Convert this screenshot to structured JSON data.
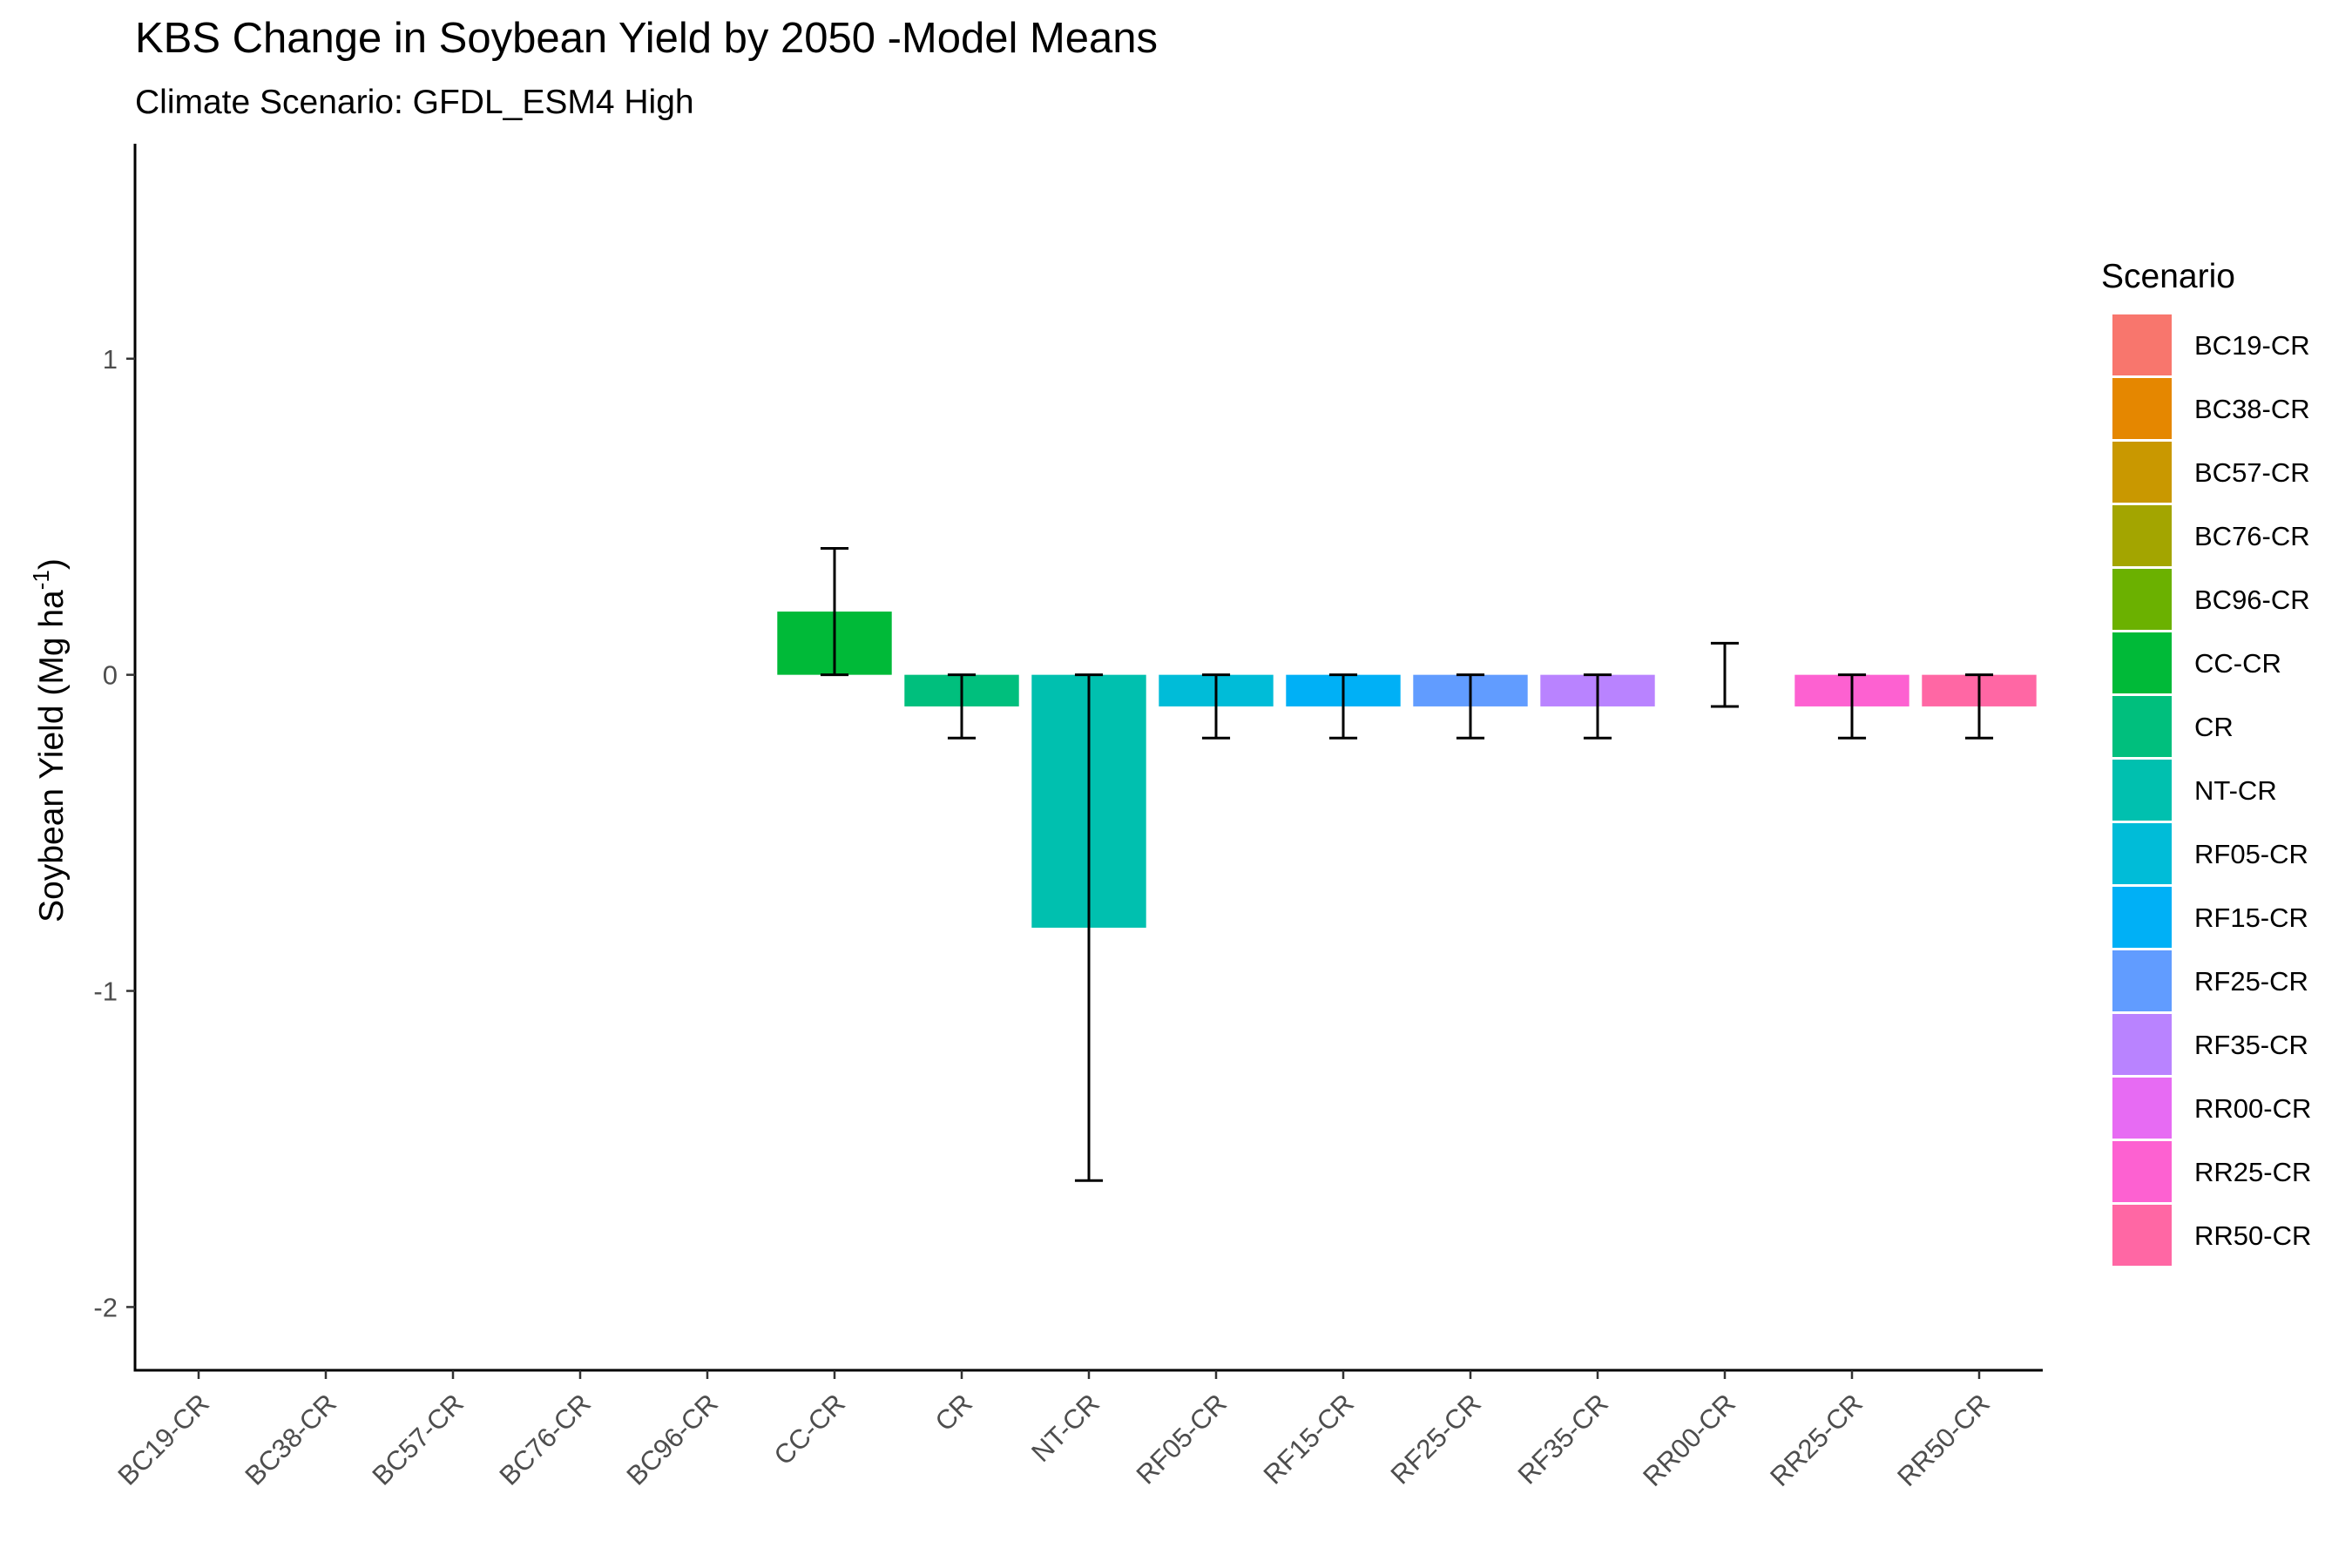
{
  "chart_data": {
    "type": "bar",
    "title": "KBS Change in Soybean Yield by  2050 -Model Means",
    "subtitle": "Climate Scenario: GFDL_ESM4 High",
    "ylabel_main": "Soybean Yield (Mg ha",
    "ylabel_sup": "-1",
    "ylabel_close": ")",
    "xlabel": "",
    "ylim": [
      -2.2,
      1.68
    ],
    "yticks": [
      1,
      0,
      -1,
      -2
    ],
    "ytick_labels": [
      "1",
      "0",
      "-1",
      "-2"
    ],
    "grid": false,
    "legend": {
      "title": "Scenario",
      "position": "right"
    },
    "categories": [
      "BC19-CR",
      "BC38-CR",
      "BC57-CR",
      "BC76-CR",
      "BC96-CR",
      "CC-CR",
      "CR",
      "NT-CR",
      "RF05-CR",
      "RF15-CR",
      "RF25-CR",
      "RF35-CR",
      "RR00-CR",
      "RR25-CR",
      "RR50-CR"
    ],
    "colors": [
      "#F8766D",
      "#E58700",
      "#C99800",
      "#A3A500",
      "#6BB100",
      "#00BA38",
      "#00BF7D",
      "#00C0AF",
      "#00BCD8",
      "#00B0F6",
      "#619CFF",
      "#B983FF",
      "#E76BF3",
      "#FD61D1",
      "#FF67A4"
    ],
    "values": [
      null,
      null,
      null,
      null,
      null,
      0.2,
      -0.1,
      -0.8,
      -0.1,
      -0.1,
      -0.1,
      -0.1,
      0.0,
      -0.1,
      -0.1
    ],
    "error_low": [
      null,
      null,
      null,
      null,
      null,
      0.0,
      -0.2,
      -1.6,
      -0.2,
      -0.2,
      -0.2,
      -0.2,
      -0.1,
      -0.2,
      -0.2
    ],
    "error_high": [
      null,
      null,
      null,
      null,
      null,
      0.4,
      0.0,
      0.0,
      0.0,
      0.0,
      0.0,
      0.0,
      0.1,
      0.0,
      0.0
    ]
  }
}
